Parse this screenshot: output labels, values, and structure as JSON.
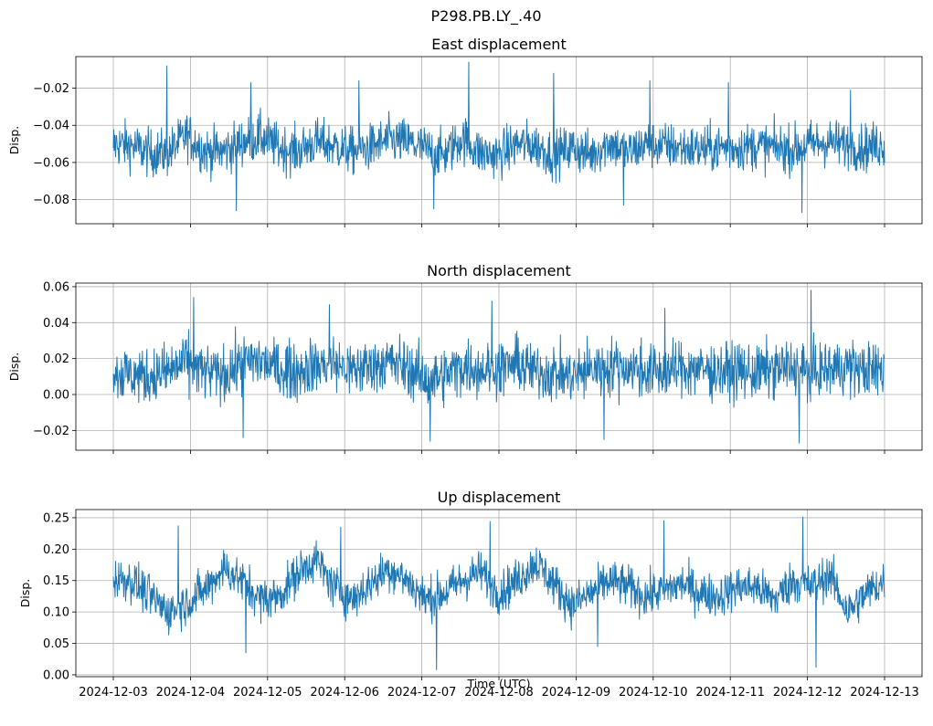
{
  "chart_data": {
    "type": "line",
    "suptitle": "P298.PB.LY_.40",
    "xlabel": "Time (UTC)",
    "x_range": [
      "2024-12-03",
      "2024-12-13"
    ],
    "x_ticks": [
      "2024-12-03",
      "2024-12-04",
      "2024-12-05",
      "2024-12-06",
      "2024-12-07",
      "2024-12-08",
      "2024-12-09",
      "2024-12-10",
      "2024-12-11",
      "2024-12-12",
      "2024-12-13"
    ],
    "series_color": "#1f77b4",
    "grid": true,
    "panels": [
      {
        "title": "East displacement",
        "ylabel": "Disp.",
        "ylim": [
          -0.093,
          -0.003
        ],
        "yticks": [
          -0.08,
          -0.06,
          -0.04,
          -0.02
        ],
        "ytick_labels": [
          "−0.08",
          "−0.06",
          "−0.04",
          "−0.02"
        ],
        "baseline": [
          -0.05,
          -0.051,
          -0.055,
          -0.055,
          -0.045,
          -0.054,
          -0.054,
          -0.049,
          -0.046,
          -0.052,
          -0.054,
          -0.049,
          -0.051,
          -0.054,
          -0.052,
          -0.048,
          -0.049,
          -0.053,
          -0.056,
          -0.047,
          -0.055,
          -0.056,
          -0.05,
          -0.051,
          -0.056,
          -0.052,
          -0.056,
          -0.049,
          -0.055,
          -0.05,
          -0.051,
          -0.052,
          -0.053,
          -0.052,
          -0.052,
          -0.051,
          -0.052,
          -0.053,
          -0.05,
          -0.049,
          -0.051,
          -0.052,
          -0.05
        ],
        "spread": 0.009,
        "spikes_max": [
          -0.008,
          -0.017,
          -0.016,
          -0.006,
          -0.012,
          -0.016,
          -0.017,
          -0.021
        ],
        "spikes_min": [
          -0.086,
          -0.085,
          -0.083,
          -0.087
        ]
      },
      {
        "title": "North displacement",
        "ylabel": "Disp.",
        "ylim": [
          -0.031,
          0.062
        ],
        "yticks": [
          -0.02,
          0.0,
          0.02,
          0.04,
          0.06
        ],
        "ytick_labels": [
          "−0.02",
          "0.00",
          "0.02",
          "0.04",
          "0.06"
        ],
        "baseline": [
          0.012,
          0.011,
          0.01,
          0.013,
          0.018,
          0.012,
          0.011,
          0.017,
          0.019,
          0.014,
          0.013,
          0.016,
          0.017,
          0.013,
          0.016,
          0.018,
          0.015,
          0.008,
          0.01,
          0.016,
          0.014,
          0.015,
          0.017,
          0.013,
          0.012,
          0.01,
          0.014,
          0.016,
          0.015,
          0.013,
          0.012,
          0.015,
          0.014,
          0.013,
          0.013,
          0.012,
          0.014,
          0.015,
          0.012,
          0.014,
          0.016,
          0.013,
          0.014
        ],
        "spread": 0.011,
        "spikes_max": [
          0.054,
          0.05,
          0.052,
          0.048,
          0.058
        ],
        "spikes_min": [
          -0.024,
          -0.026,
          -0.025,
          -0.027
        ]
      },
      {
        "title": "Up displacement",
        "ylabel": "Disp.",
        "ylim": [
          -0.003,
          0.263
        ],
        "yticks": [
          0.0,
          0.05,
          0.1,
          0.15,
          0.2,
          0.25
        ],
        "ytick_labels": [
          "0.00",
          "0.05",
          "0.10",
          "0.15",
          "0.20",
          "0.25"
        ],
        "baseline": [
          0.155,
          0.15,
          0.125,
          0.1,
          0.115,
          0.135,
          0.17,
          0.15,
          0.12,
          0.125,
          0.16,
          0.185,
          0.14,
          0.12,
          0.145,
          0.17,
          0.15,
          0.12,
          0.13,
          0.15,
          0.165,
          0.13,
          0.15,
          0.18,
          0.145,
          0.11,
          0.13,
          0.15,
          0.14,
          0.125,
          0.135,
          0.145,
          0.13,
          0.125,
          0.14,
          0.14,
          0.12,
          0.15,
          0.14,
          0.16,
          0.1,
          0.13,
          0.15
        ],
        "spread": 0.024,
        "spikes_max": [
          0.237,
          0.235,
          0.244,
          0.245,
          0.251
        ],
        "spikes_min": [
          0.035,
          0.008,
          0.045,
          0.012
        ]
      }
    ]
  }
}
